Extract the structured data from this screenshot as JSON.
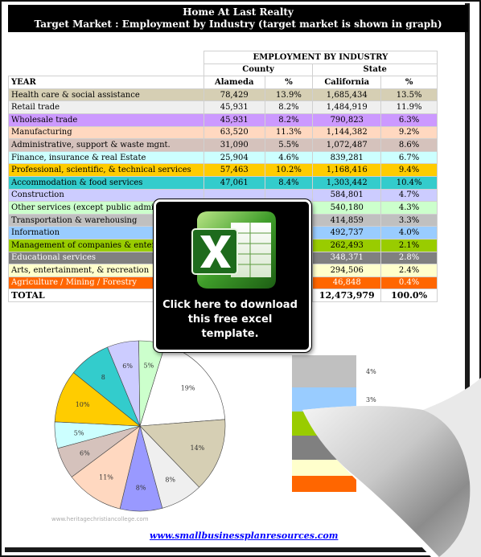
{
  "header": {
    "line1": "Home At Last Realty",
    "line2": "Target Market : Employment by Industry (target market is shown in graph)"
  },
  "table": {
    "group_title": "EMPLOYMENT BY INDUSTRY",
    "county_label": "County",
    "state_label": "State",
    "year_label": "YEAR",
    "col_alameda": "Alameda",
    "col_pct": "%",
    "col_california": "California",
    "col_pct2": "%",
    "rows": [
      {
        "industry": "Health care & social assistance",
        "alameda": "78,429",
        "a_pct": "13.9%",
        "california": "1,685,434",
        "c_pct": "13.5%",
        "color": "#d6cfb4"
      },
      {
        "industry": "Retail trade",
        "alameda": "45,931",
        "a_pct": "8.2%",
        "california": "1,484,919",
        "c_pct": "11.9%",
        "color": "#efefef"
      },
      {
        "industry": "Wholesale trade",
        "alameda": "45,931",
        "a_pct": "8.2%",
        "california": "790,823",
        "c_pct": "6.3%",
        "color": "#cc99ff"
      },
      {
        "industry": "Manufacturing",
        "alameda": "63,520",
        "a_pct": "11.3%",
        "california": "1,144,382",
        "c_pct": "9.2%",
        "color": "#ffd8c0"
      },
      {
        "industry": "Administrative, support & waste mgnt.",
        "alameda": "31,090",
        "a_pct": "5.5%",
        "california": "1,072,487",
        "c_pct": "8.6%",
        "color": "#d5c2bc"
      },
      {
        "industry": "Finance, insurance & real Estate",
        "alameda": "25,904",
        "a_pct": "4.6%",
        "california": "839,281",
        "c_pct": "6.7%",
        "color": "#ccffff"
      },
      {
        "industry": "Professional, scientific, & technical services",
        "alameda": "57,463",
        "a_pct": "10.2%",
        "california": "1,168,416",
        "c_pct": "9.4%",
        "color": "#ffcc00"
      },
      {
        "industry": "Accommodation & food services",
        "alameda": "47,061",
        "a_pct": "8.4%",
        "california": "1,303,442",
        "c_pct": "10.4%",
        "color": "#33cccc"
      },
      {
        "industry": "Construction",
        "alameda": "",
        "a_pct": "",
        "california": "584,801",
        "c_pct": "4.7%",
        "color": "#ccccff"
      },
      {
        "industry": "Other services (except public adminis",
        "alameda": "",
        "a_pct": "",
        "california": "540,180",
        "c_pct": "4.3%",
        "color": "#ccffcc"
      },
      {
        "industry": "Transportation & warehousing",
        "alameda": "",
        "a_pct": "",
        "california": "414,859",
        "c_pct": "3.3%",
        "color": "#c0c0c0"
      },
      {
        "industry": "Information",
        "alameda": "",
        "a_pct": "",
        "california": "492,737",
        "c_pct": "4.0%",
        "color": "#99ccff"
      },
      {
        "industry": "Management of companies & enterp",
        "alameda": "",
        "a_pct": "",
        "california": "262,493",
        "c_pct": "2.1%",
        "color": "#99cc00"
      },
      {
        "industry": "Educational services",
        "alameda": "",
        "a_pct": "",
        "california": "348,371",
        "c_pct": "2.8%",
        "color": "#808080",
        "text_color": "#ffffff"
      },
      {
        "industry": "Arts, entertainment, & recreation",
        "alameda": "",
        "a_pct": "",
        "california": "294,506",
        "c_pct": "2.4%",
        "color": "#ffffcc"
      },
      {
        "industry": "Agriculture / Mining / Forestry",
        "alameda": "",
        "a_pct": "",
        "california": "46,848",
        "c_pct": "0.4%",
        "color": "#ff6600",
        "text_color": "#ffffff"
      }
    ],
    "total": {
      "label": "TOTAL",
      "alameda": "",
      "a_pct": "%",
      "california": "12,473,979",
      "c_pct": "100.0%"
    }
  },
  "overlay": {
    "cta_line1": "Click here to download",
    "cta_line2": "this free excel template.",
    "icon": "excel-icon"
  },
  "chart_data": {
    "type": "pie",
    "slices": [
      {
        "value": 19,
        "label": "19%",
        "color": "#ffffff"
      },
      {
        "value": 14,
        "label": "14%",
        "color": "#d6cfb4"
      },
      {
        "value": 8,
        "label": "8%",
        "color": "#efefef"
      },
      {
        "value": 8,
        "label": "8%",
        "color": "#9999ff"
      },
      {
        "value": 11,
        "label": "11%",
        "color": "#ffd8c0"
      },
      {
        "value": 6,
        "label": "6%",
        "color": "#d5c2bc"
      },
      {
        "value": 5,
        "label": "5%",
        "color": "#ccffff"
      },
      {
        "value": 10,
        "label": "10%",
        "color": "#ffcc00"
      },
      {
        "value": 8,
        "label": "8",
        "color": "#33cccc"
      },
      {
        "value": 6,
        "label": "6%",
        "color": "#ccccff"
      },
      {
        "value": 5,
        "label": "5%",
        "color": "#ccffcc"
      }
    ],
    "bar_of_pie": [
      {
        "value": 4,
        "label": "4%",
        "color": "#c0c0c0"
      },
      {
        "value": 3,
        "label": "3%",
        "color": "#99ccff"
      },
      {
        "value": 3,
        "label": "",
        "color": "#99cc00"
      },
      {
        "value": 3,
        "label": "",
        "color": "#808080"
      },
      {
        "value": 2,
        "label": "",
        "color": "#ffffcc"
      },
      {
        "value": 2,
        "label": "",
        "color": "#ff6600"
      }
    ]
  },
  "watermark": "www.heritagechristiancollege.com",
  "footer": {
    "link": "www.smallbusinessplanresources.com"
  }
}
